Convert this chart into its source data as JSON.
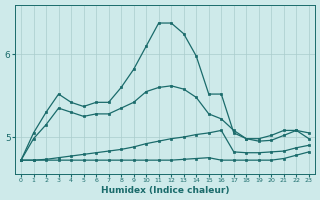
{
  "xlabel": "Humidex (Indice chaleur)",
  "bg_color": "#ceeaea",
  "grid_color": "#aacccc",
  "line_color": "#1a6b6b",
  "x_values": [
    0,
    1,
    2,
    3,
    4,
    5,
    6,
    7,
    8,
    9,
    10,
    11,
    12,
    13,
    14,
    15,
    16,
    17,
    18,
    19,
    20,
    21,
    22,
    23
  ],
  "line1": [
    4.72,
    5.05,
    5.3,
    5.52,
    5.42,
    5.37,
    5.42,
    5.42,
    5.6,
    5.82,
    6.1,
    6.38,
    6.38,
    6.25,
    5.98,
    5.52,
    5.52,
    5.05,
    4.98,
    4.98,
    5.02,
    5.08,
    5.08,
    4.98
  ],
  "line2": [
    4.72,
    4.98,
    5.15,
    5.35,
    5.3,
    5.25,
    5.28,
    5.28,
    5.35,
    5.42,
    5.55,
    5.6,
    5.62,
    5.58,
    5.48,
    5.28,
    5.22,
    5.08,
    4.98,
    4.95,
    4.96,
    5.02,
    5.08,
    5.05
  ],
  "line3": [
    4.72,
    4.72,
    4.73,
    4.75,
    4.77,
    4.79,
    4.81,
    4.83,
    4.85,
    4.88,
    4.92,
    4.95,
    4.98,
    5.0,
    5.03,
    5.05,
    5.08,
    4.82,
    4.81,
    4.81,
    4.82,
    4.83,
    4.87,
    4.9
  ],
  "line4": [
    4.72,
    4.72,
    4.72,
    4.72,
    4.72,
    4.72,
    4.72,
    4.72,
    4.72,
    4.72,
    4.72,
    4.72,
    4.72,
    4.73,
    4.74,
    4.75,
    4.72,
    4.72,
    4.72,
    4.72,
    4.72,
    4.74,
    4.78,
    4.82
  ],
  "ylim": [
    4.55,
    6.6
  ],
  "yticks": [
    5.0,
    6.0
  ],
  "xticks": [
    0,
    1,
    2,
    3,
    4,
    5,
    6,
    7,
    8,
    9,
    10,
    11,
    12,
    13,
    14,
    15,
    16,
    17,
    18,
    19,
    20,
    21,
    22,
    23
  ]
}
